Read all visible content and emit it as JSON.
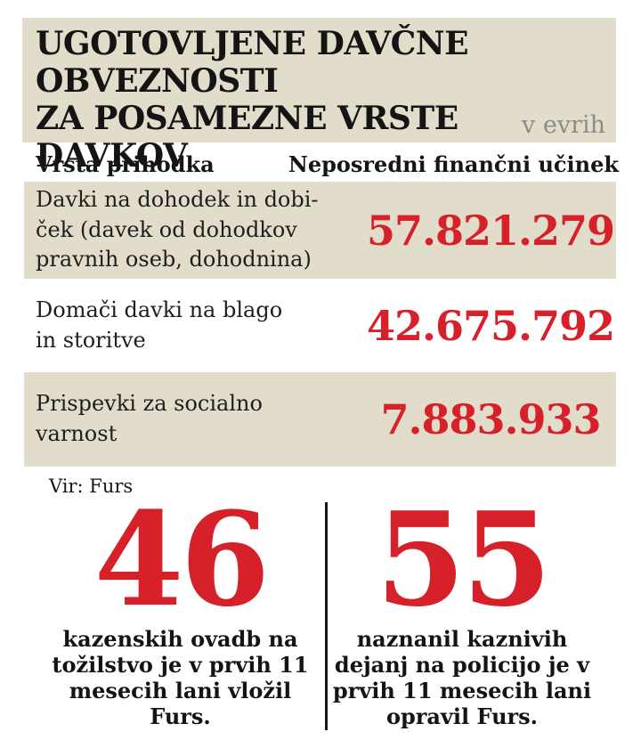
{
  "colors": {
    "accent_red": "#d6202a",
    "panel_beige": "#e2dcca",
    "text_dark": "#161616",
    "muted_gray": "#8b8b8b"
  },
  "header": {
    "title_line1": "UGOTOVLJENE DAVČNE OBVEZNOSTI",
    "title_line2": "ZA POSAMEZNE VRSTE DAVKOV",
    "unit_note": "v evrih"
  },
  "table": {
    "col_type": "Vrsta prihodka",
    "col_effect": "Neposredni finančni učinek",
    "rows": [
      {
        "lines": [
          "Davki na dohodek in dobi-",
          "ček (davek od dohodkov",
          "pravnih oseb, dohodnina)"
        ],
        "value": "57.821.279"
      },
      {
        "lines": [
          "Domači davki na blago",
          "in storitve"
        ],
        "value": "42.675.792"
      },
      {
        "lines": [
          "Prispevki za socialno",
          "varnost"
        ],
        "value": "7.883.933"
      }
    ],
    "source": "Vir: Furs"
  },
  "stats": [
    {
      "number": "46",
      "lines": [
        "kazenskih ovadb na",
        "tožilstvo je v prvih 11",
        "mesecih lani vložil",
        "Furs."
      ]
    },
    {
      "number": "55",
      "lines": [
        "naznanil kaznivih",
        "dejanj na policijo je v",
        "prvih 11 mesecih lani",
        "opravil Furs."
      ]
    }
  ],
  "chart_data": {
    "type": "table",
    "title": "UGOTOVLJENE DAVČNE OBVEZNOSTI ZA POSAMEZNE VRSTE DAVKOV",
    "unit": "v evrih",
    "columns": [
      "Vrsta prihodka",
      "Neposredni finančni učinek"
    ],
    "rows": [
      {
        "category": "Davki na dohodek in dobiček (davek od dohodkov pravnih oseb, dohodnina)",
        "value": 57821279
      },
      {
        "category": "Domači davki na blago in storitve",
        "value": 42675792
      },
      {
        "category": "Prispevki za socialno varnost",
        "value": 7883933
      }
    ],
    "callouts": [
      {
        "value": 46,
        "text": "kazenskih ovadb na tožilstvo je v prvih 11 mesecih lani vložil Furs."
      },
      {
        "value": 55,
        "text": "naznanil kaznivih dejanj na policijo je v prvih 11 mesecih lani opravil Furs."
      }
    ],
    "source": "Vir: Furs"
  }
}
